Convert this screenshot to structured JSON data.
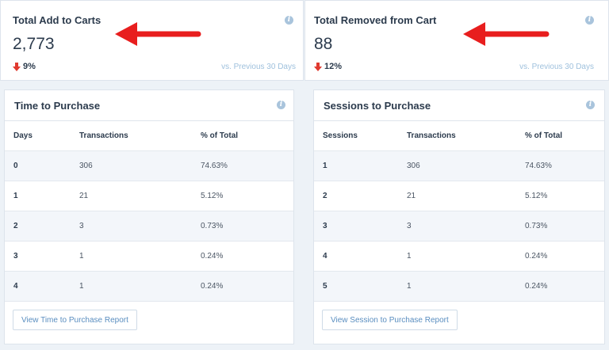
{
  "cards": {
    "add_to_carts": {
      "title": "Total Add to Carts",
      "value": "2,773",
      "change": "9%",
      "compare": "vs. Previous 30 Days"
    },
    "removed": {
      "title": "Total Removed from Cart",
      "value": "88",
      "change": "12%",
      "compare": "vs. Previous 30 Days"
    }
  },
  "time_to_purchase": {
    "title": "Time to Purchase",
    "columns": [
      "Days",
      "Transactions",
      "% of Total"
    ],
    "rows": [
      [
        "0",
        "306",
        "74.63%"
      ],
      [
        "1",
        "21",
        "5.12%"
      ],
      [
        "2",
        "3",
        "0.73%"
      ],
      [
        "3",
        "1",
        "0.24%"
      ],
      [
        "4",
        "1",
        "0.24%"
      ]
    ],
    "button": "View Time to Purchase Report"
  },
  "sessions_to_purchase": {
    "title": "Sessions to Purchase",
    "columns": [
      "Sessions",
      "Transactions",
      "% of Total"
    ],
    "rows": [
      [
        "1",
        "306",
        "74.63%"
      ],
      [
        "2",
        "21",
        "5.12%"
      ],
      [
        "3",
        "3",
        "0.73%"
      ],
      [
        "4",
        "1",
        "0.24%"
      ],
      [
        "5",
        "1",
        "0.24%"
      ]
    ],
    "button": "View Session to Purchase Report"
  },
  "icons": {
    "info": "info-icon",
    "change": "arrow-down-icon",
    "annotation": "red-arrow-left-icon"
  },
  "colors": {
    "decrease": "#e03a2f",
    "annotation": "#e81e1e",
    "link": "#5a8ec0",
    "background": "#edf2f7"
  }
}
